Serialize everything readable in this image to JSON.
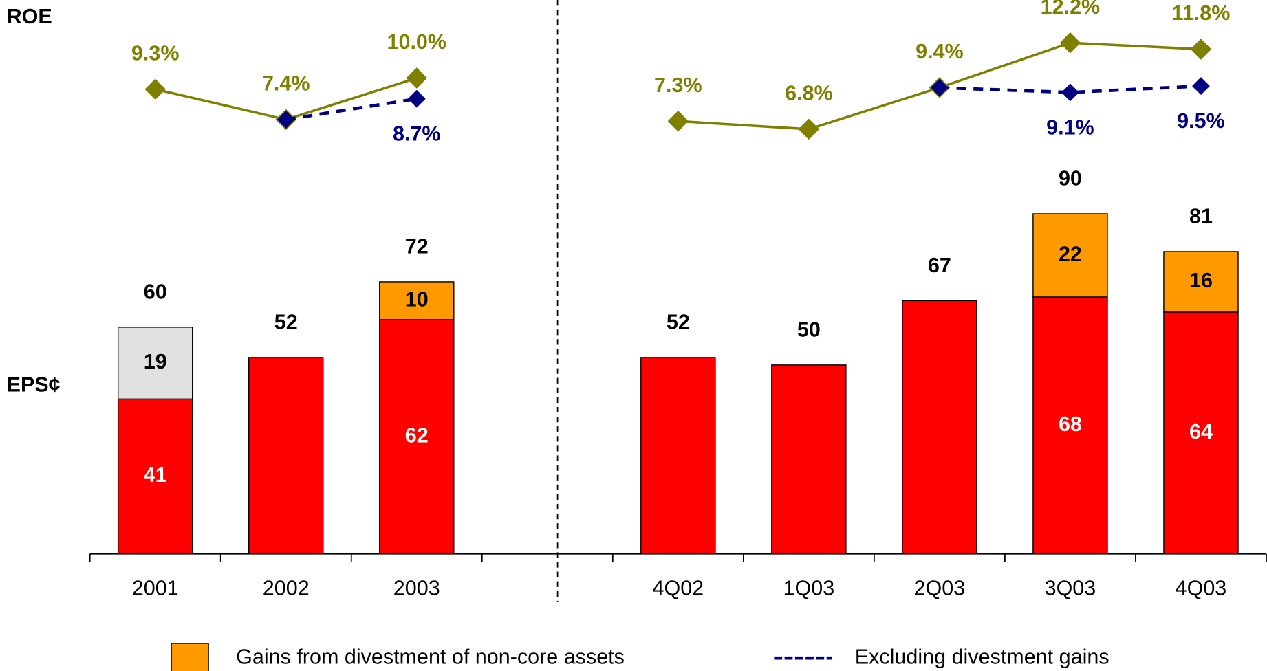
{
  "chart_data": [
    {
      "type": "bar",
      "axis_label": "EPS¢",
      "categories": [
        "2001",
        "2002",
        "2003",
        null,
        "4Q02",
        "1Q03",
        "2Q03",
        "3Q03",
        "4Q03"
      ],
      "series": [
        {
          "color": "#ff0000",
          "values": [
            41,
            52,
            62,
            null,
            52,
            50,
            67,
            68,
            64
          ],
          "value_labels": [
            "41",
            null,
            "62",
            null,
            null,
            null,
            null,
            "68",
            "64"
          ]
        },
        {
          "color": "#e0e0e0",
          "values": [
            19,
            null,
            null,
            null,
            null,
            null,
            null,
            null,
            null
          ],
          "value_labels": [
            "19",
            null,
            null,
            null,
            null,
            null,
            null,
            null,
            null
          ]
        },
        {
          "name": "Gains from divestment of non-core assets",
          "color": "#ff9900",
          "values": [
            null,
            null,
            10,
            null,
            null,
            null,
            null,
            22,
            16
          ],
          "value_labels": [
            null,
            null,
            "10",
            null,
            null,
            null,
            null,
            "22",
            "16"
          ]
        }
      ],
      "totals": [
        60,
        52,
        72,
        null,
        52,
        50,
        67,
        90,
        81
      ]
    },
    {
      "type": "line",
      "axis_label": "ROE",
      "series": [
        {
          "color": "#808000",
          "values": [
            9.3,
            7.4,
            10.0,
            null,
            7.3,
            6.8,
            9.4,
            12.2,
            11.8
          ],
          "value_labels": [
            "9.3%",
            "7.4%",
            "10.0%",
            null,
            "7.3%",
            "6.8%",
            "9.4%",
            "12.2%",
            "11.8%"
          ]
        },
        {
          "name": "Excluding divestment gains",
          "color": "#000080",
          "dashed": true,
          "values": [
            null,
            7.4,
            8.7,
            null,
            null,
            null,
            9.4,
            9.1,
            9.5
          ],
          "value_labels": [
            null,
            null,
            "8.7%",
            null,
            null,
            null,
            null,
            "9.1%",
            "9.5%"
          ]
        }
      ]
    }
  ]
}
